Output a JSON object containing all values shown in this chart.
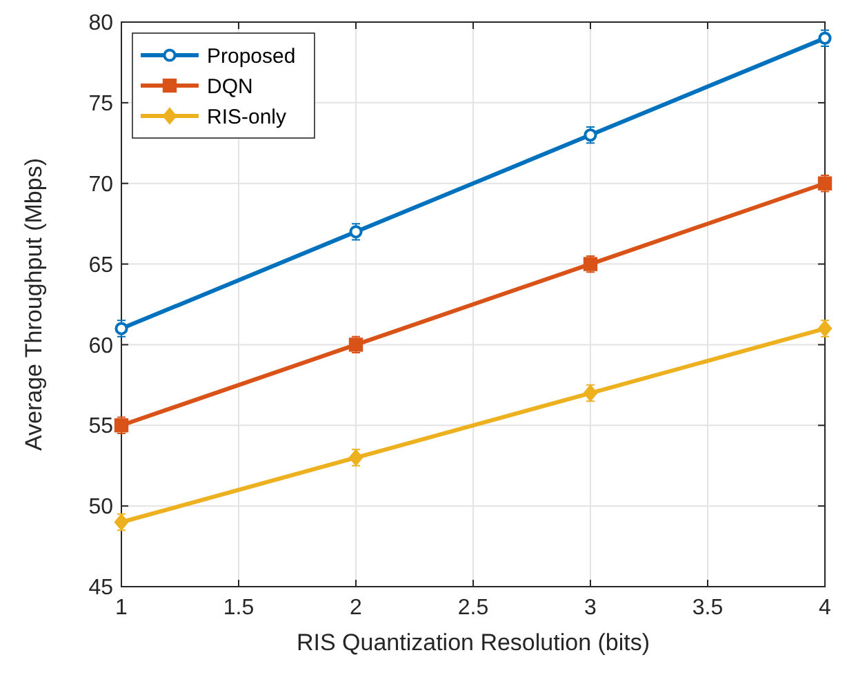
{
  "chart_data": {
    "type": "line",
    "xlabel": "RIS Quantization Resolution (bits)",
    "ylabel": "Average Throughput (Mbps)",
    "x": [
      1,
      2,
      3,
      4
    ],
    "series": [
      {
        "name": "Proposed",
        "color": "#0072bd",
        "values": [
          61,
          67,
          73,
          79
        ],
        "errors": [
          0.5,
          0.5,
          0.5,
          0.5
        ],
        "marker": "circle"
      },
      {
        "name": "DQN",
        "color": "#d95319",
        "values": [
          55,
          60,
          65,
          70
        ],
        "errors": [
          0.5,
          0.5,
          0.5,
          0.5
        ],
        "marker": "square"
      },
      {
        "name": "RIS-only",
        "color": "#edb120",
        "values": [
          49,
          53,
          57,
          61
        ],
        "errors": [
          0.5,
          0.5,
          0.5,
          0.5
        ],
        "marker": "diamond"
      }
    ],
    "xlim": [
      1,
      4
    ],
    "xticks": [
      1,
      1.5,
      2,
      2.5,
      3,
      3.5,
      4
    ],
    "ylim": [
      45,
      80
    ],
    "yticks": [
      45,
      50,
      55,
      60,
      65,
      70,
      75,
      80
    ],
    "grid": true,
    "legend": "top left",
    "line_style": "solid"
  }
}
